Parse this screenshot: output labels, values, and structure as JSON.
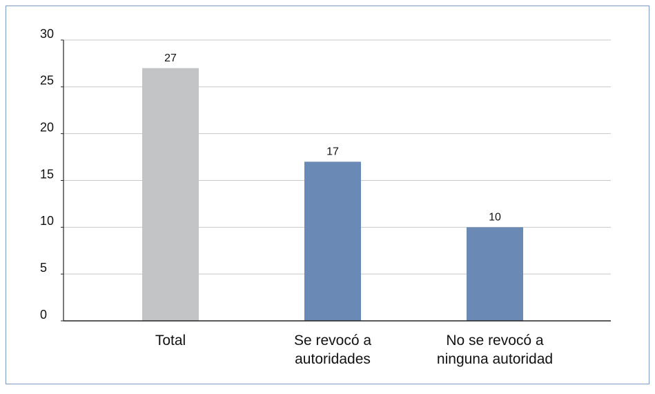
{
  "chart_data": {
    "type": "bar",
    "categories": [
      "Total",
      "Se revocó a\nautoridades",
      "No se revocó a\nninguna autoridad"
    ],
    "values": [
      27,
      17,
      10
    ],
    "colors": [
      "#c3c4c6",
      "#6a8ab5",
      "#6a8ab5"
    ],
    "ylim": [
      0,
      30
    ],
    "yticks": [
      0,
      5,
      10,
      15,
      20,
      25,
      30
    ],
    "grid": true
  }
}
